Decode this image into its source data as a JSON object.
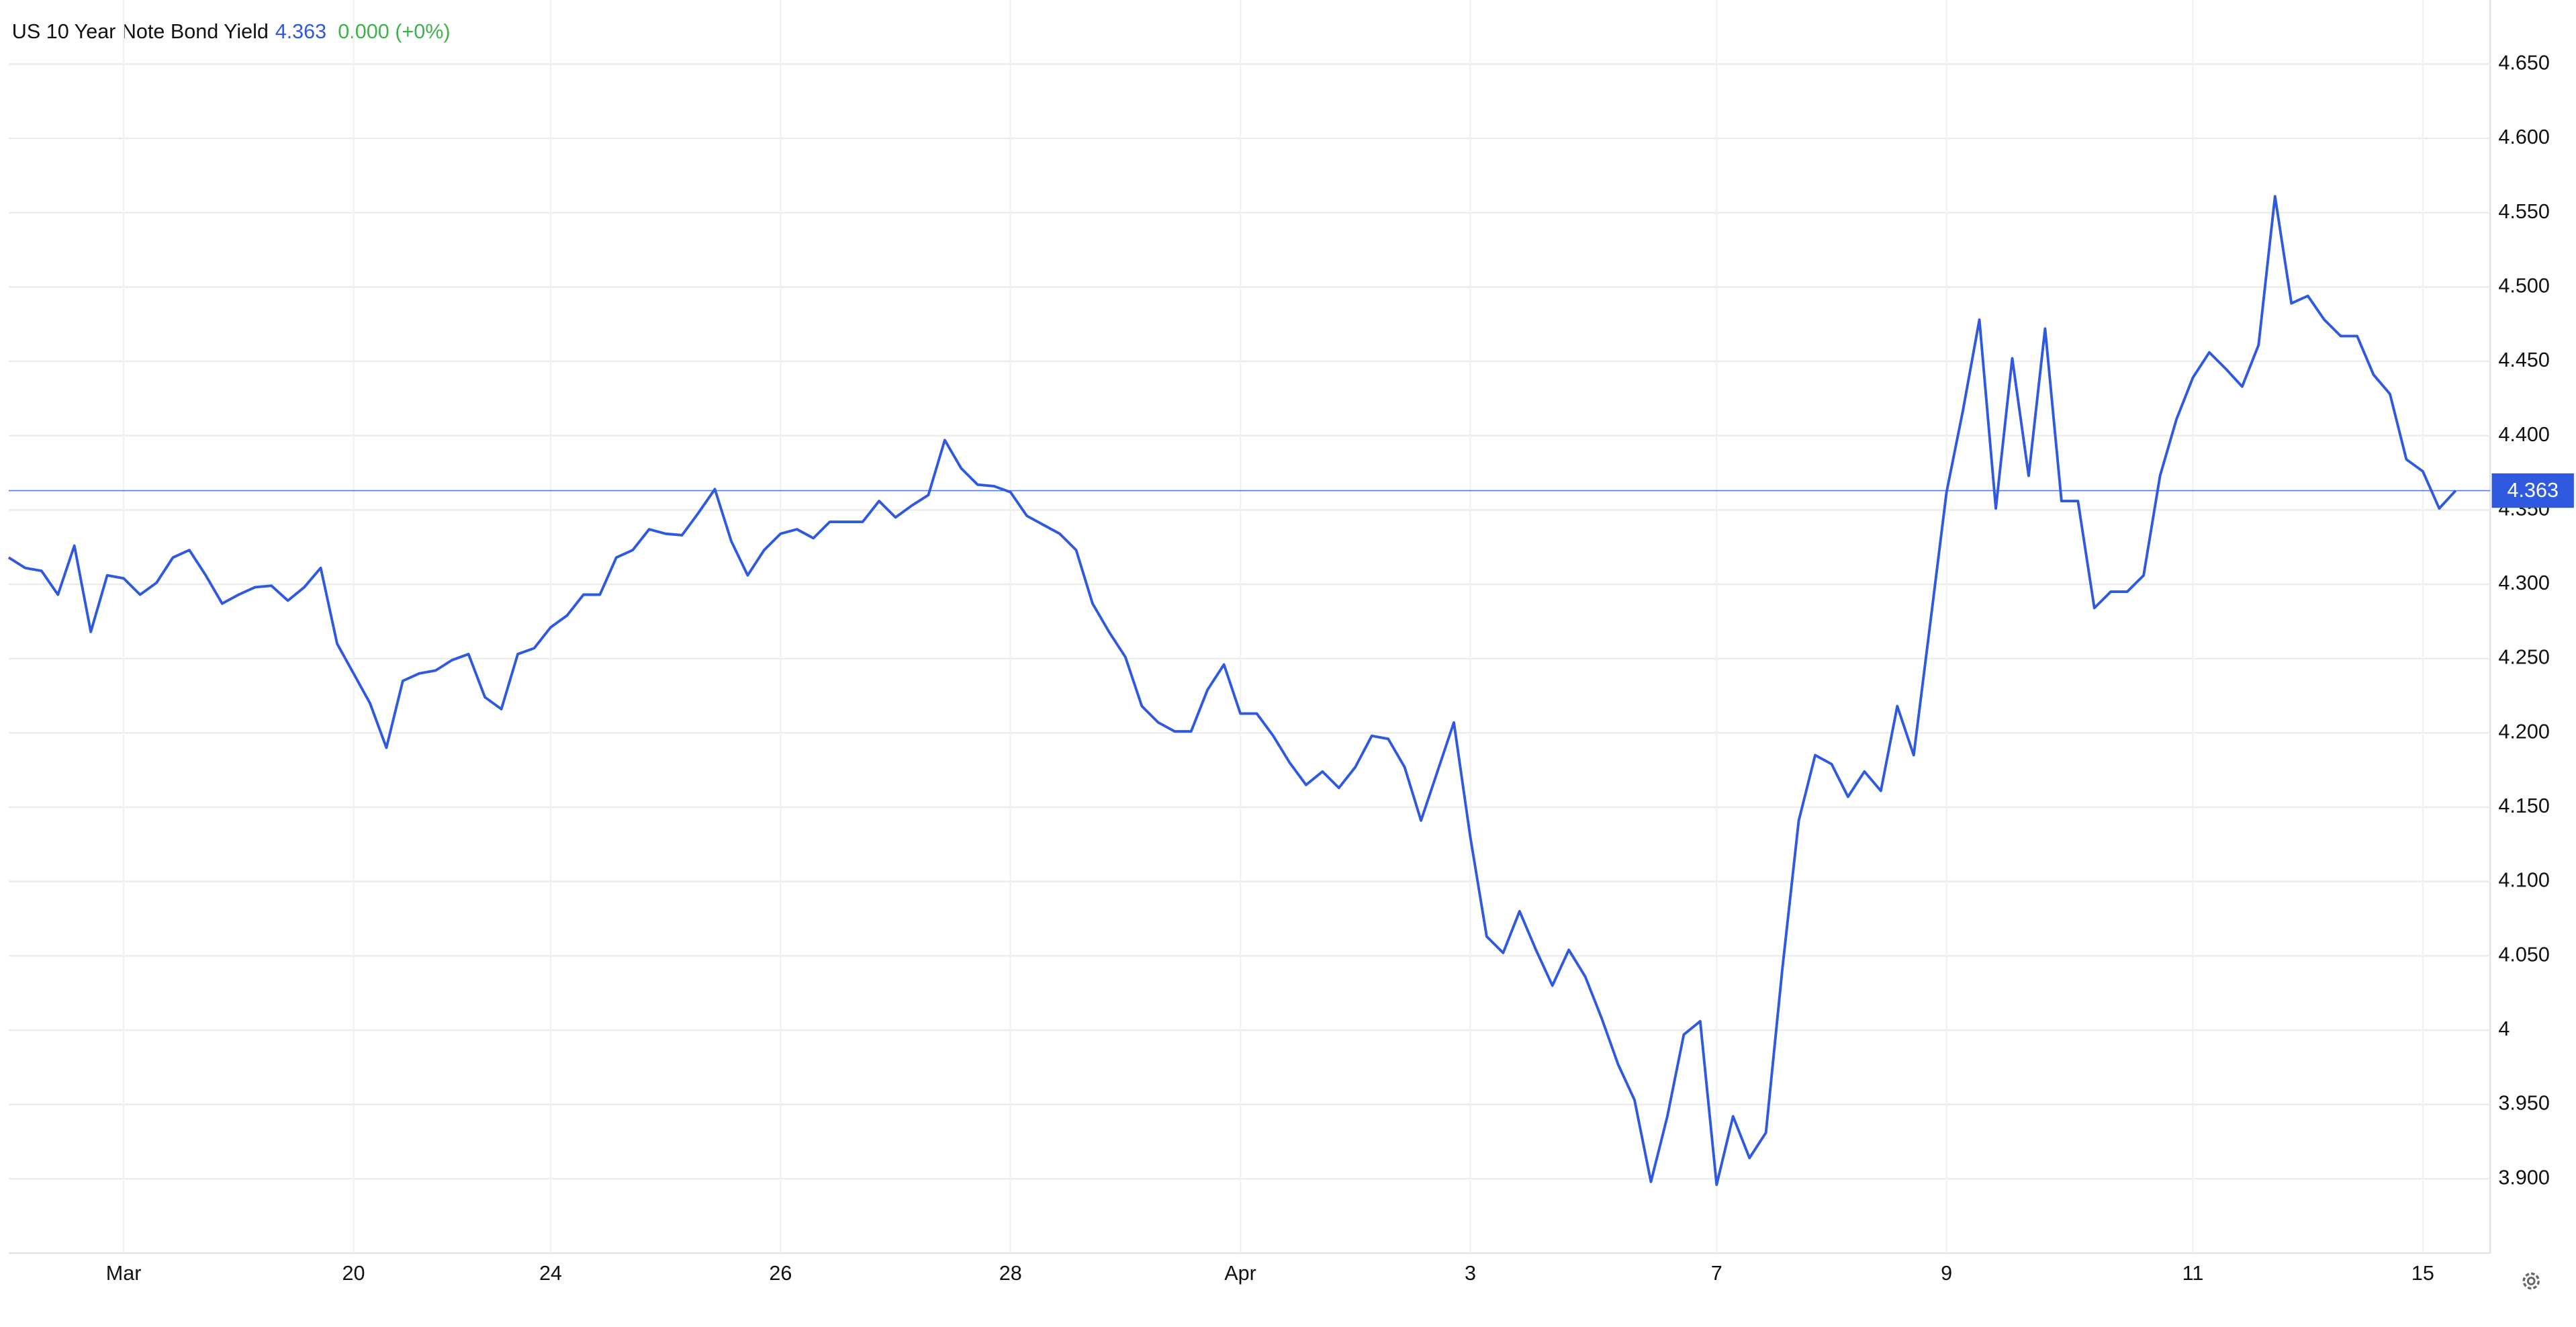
{
  "chart_data": {
    "type": "line",
    "title": "US 10 Year Note Bond Yield",
    "price": 4.363,
    "change": "0.000 (+0%)",
    "color": "#2f5ae0",
    "categories": [
      null,
      null,
      null,
      null,
      null,
      null,
      null,
      "Mar",
      null,
      null,
      null,
      null,
      null,
      null,
      null,
      null,
      null,
      null,
      null,
      null,
      null,
      "20",
      null,
      null,
      null,
      null,
      null,
      null,
      null,
      null,
      null,
      null,
      null,
      "24",
      null,
      null,
      null,
      null,
      null,
      null,
      null,
      null,
      null,
      null,
      null,
      null,
      null,
      "26",
      null,
      null,
      null,
      null,
      null,
      null,
      null,
      null,
      null,
      null,
      null,
      null,
      null,
      "28",
      null,
      null,
      null,
      null,
      null,
      null,
      null,
      null,
      null,
      null,
      null,
      null,
      null,
      "Apr",
      null,
      null,
      null,
      null,
      null,
      null,
      null,
      null,
      null,
      null,
      null,
      null,
      null,
      "3",
      null,
      null,
      null,
      null,
      null,
      null,
      null,
      null,
      null,
      null,
      null,
      null,
      null,
      null,
      "7",
      null,
      null,
      null,
      null,
      null,
      null,
      null,
      null,
      null,
      null,
      null,
      null,
      null,
      "9",
      null,
      null,
      null,
      null,
      null,
      null,
      null,
      null,
      null,
      null,
      null,
      null,
      null,
      null,
      "11",
      null,
      null,
      null,
      null,
      null,
      null,
      null,
      null,
      null,
      null,
      null,
      null,
      null,
      "15",
      null,
      null
    ],
    "values": [
      4.318,
      4.311,
      4.309,
      4.293,
      4.326,
      4.268,
      4.306,
      4.304,
      4.293,
      4.301,
      4.318,
      4.323,
      4.306,
      4.287,
      4.293,
      4.298,
      4.299,
      4.289,
      4.298,
      4.311,
      4.26,
      4.24,
      4.22,
      4.19,
      4.235,
      4.24,
      4.242,
      4.249,
      4.253,
      4.224,
      4.216,
      4.253,
      4.257,
      4.271,
      4.279,
      4.293,
      4.293,
      4.318,
      4.323,
      4.337,
      4.334,
      4.333,
      4.348,
      4.364,
      4.329,
      4.306,
      4.323,
      4.334,
      4.337,
      4.331,
      4.342,
      4.342,
      4.342,
      4.356,
      4.345,
      4.353,
      4.36,
      4.397,
      4.378,
      4.367,
      4.366,
      4.362,
      4.346,
      4.34,
      4.334,
      4.323,
      4.287,
      4.268,
      4.251,
      4.218,
      4.207,
      4.201,
      4.201,
      4.229,
      4.246,
      4.213,
      4.213,
      4.198,
      4.18,
      4.165,
      4.174,
      4.163,
      4.177,
      4.198,
      4.196,
      4.177,
      4.141,
      4.174,
      4.207,
      4.13,
      4.063,
      4.052,
      4.08,
      4.054,
      4.03,
      4.054,
      4.036,
      4.008,
      3.977,
      3.953,
      3.898,
      3.942,
      3.997,
      4.006,
      3.896,
      3.942,
      3.914,
      3.931,
      4.041,
      4.141,
      4.185,
      4.179,
      4.157,
      4.174,
      4.161,
      4.218,
      4.185,
      4.273,
      4.362,
      4.417,
      4.478,
      4.351,
      4.452,
      4.373,
      4.472,
      4.356,
      4.356,
      4.284,
      4.295,
      4.295,
      4.306,
      4.373,
      4.411,
      4.439,
      4.456,
      4.445,
      4.433,
      4.461,
      4.561,
      4.489,
      4.494,
      4.478,
      4.467,
      4.467,
      4.441,
      4.428,
      4.384,
      4.376,
      4.351,
      4.363
    ],
    "ylim": [
      3.85,
      4.69
    ],
    "yticks": [
      {
        "value": 3.9,
        "label": "3.900"
      },
      {
        "value": 3.95,
        "label": "3.950"
      },
      4,
      {
        "value": 4.05,
        "label": "4.050"
      },
      {
        "value": 4.1,
        "label": "4.100"
      },
      {
        "value": 4.15,
        "label": "4.150"
      },
      {
        "value": 4.2,
        "label": "4.200"
      },
      {
        "value": 4.25,
        "label": "4.250"
      },
      {
        "value": 4.3,
        "label": "4.300"
      },
      {
        "value": 4.35,
        "label": "4.350"
      },
      {
        "value": 4.4,
        "label": "4.400"
      },
      {
        "value": 4.45,
        "label": "4.450"
      },
      {
        "value": 4.5,
        "label": "4.500"
      },
      {
        "value": 4.55,
        "label": "4.550"
      },
      {
        "value": 4.6,
        "label": "4.600"
      },
      {
        "value": 4.65,
        "label": "4.650"
      }
    ],
    "grid": true
  }
}
